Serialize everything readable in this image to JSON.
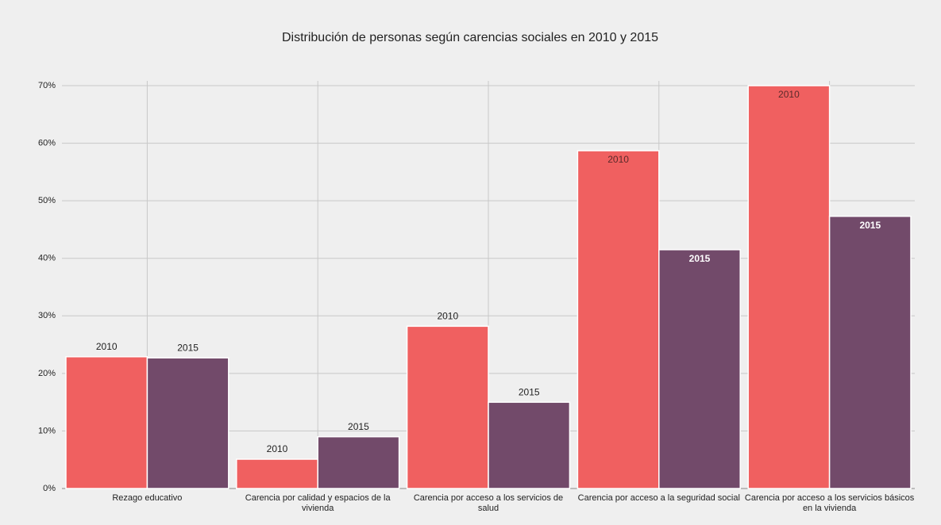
{
  "chart_data": {
    "type": "bar",
    "title": "Distribución de personas según carencias sociales en 2010 y 2015",
    "categories": [
      "Rezago educativo",
      "Carencia por calidad y espacios de la vivienda",
      "Carencia por acceso a los servicios de salud",
      "Carencia por acceso a la seguridad social",
      "Carencia por acceso a los servicios básicos en la vivienda"
    ],
    "series": [
      {
        "name": "2010",
        "color": "#f06060",
        "values": [
          22.9,
          5.1,
          28.2,
          58.7,
          70.0
        ]
      },
      {
        "name": "2015",
        "color": "#724a6a",
        "values": [
          22.7,
          9.0,
          15.0,
          41.5,
          47.3
        ]
      }
    ],
    "ylim": [
      0,
      70
    ],
    "yticks": [
      {
        "value": 0,
        "label": "0%"
      },
      {
        "value": 10,
        "label": "10%"
      },
      {
        "value": 20,
        "label": "20%"
      },
      {
        "value": 30,
        "label": "30%"
      },
      {
        "value": 40,
        "label": "40%"
      },
      {
        "value": 50,
        "label": "50%"
      },
      {
        "value": 60,
        "label": "60%"
      },
      {
        "value": 70,
        "label": "70%"
      }
    ],
    "grid": true
  }
}
